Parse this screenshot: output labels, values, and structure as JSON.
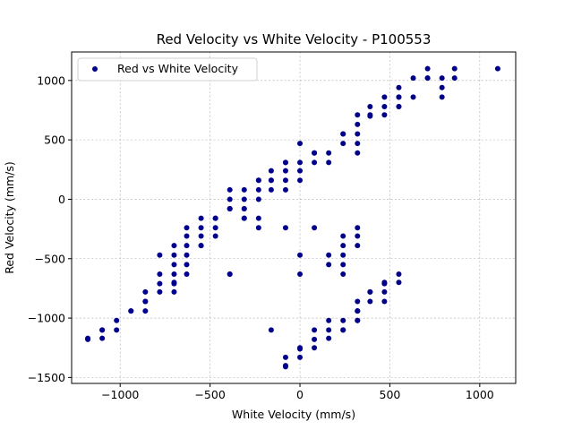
{
  "chart_data": {
    "type": "scatter",
    "title": "Red Velocity vs White Velocity - P100553",
    "xlabel": "White Velocity (mm/s)",
    "ylabel": "Red Velocity (mm/s)",
    "xlim": [
      -1270,
      1200
    ],
    "ylim": [
      -1550,
      1240
    ],
    "xticks": [
      -1000,
      -500,
      0,
      500,
      1000
    ],
    "yticks": [
      -1500,
      -1000,
      -500,
      0,
      500,
      1000
    ],
    "xtick_labels": [
      "−1000",
      "−500",
      "0",
      "500",
      "1000"
    ],
    "ytick_labels": [
      "−1500",
      "−1000",
      "−500",
      "0",
      "500",
      "1000"
    ],
    "grid": true,
    "legend": {
      "position": "top-left",
      "entries": [
        "Red vs White Velocity"
      ]
    },
    "series": [
      {
        "name": "Red vs White Velocity",
        "color": "#00008b",
        "marker": "circle",
        "x": [
          -1180,
          -1180,
          -1100,
          -1100,
          -1100,
          -1020,
          -1020,
          -940,
          -940,
          -860,
          -860,
          -860,
          -860,
          -780,
          -780,
          -780,
          -780,
          -700,
          -700,
          -700,
          -700,
          -700,
          -700,
          -700,
          -630,
          -630,
          -630,
          -630,
          -630,
          -630,
          -550,
          -550,
          -550,
          -550,
          -550,
          -470,
          -470,
          -470,
          -470,
          -390,
          -390,
          -390,
          -390,
          -390,
          -390,
          -310,
          -310,
          -310,
          -310,
          -310,
          -310,
          -230,
          -230,
          -230,
          -230,
          -230,
          -230,
          -160,
          -160,
          -160,
          -160,
          -80,
          -80,
          -80,
          -80,
          -80,
          -80,
          -80,
          -80,
          -80,
          0,
          0,
          0,
          0,
          0,
          0,
          0,
          0,
          0,
          80,
          80,
          80,
          80,
          80,
          80,
          80,
          160,
          160,
          160,
          160,
          160,
          160,
          160,
          240,
          240,
          240,
          240,
          240,
          240,
          240,
          240,
          240,
          240,
          240,
          320,
          320,
          320,
          320,
          320,
          320,
          320,
          320,
          320,
          320,
          320,
          320,
          320,
          320,
          390,
          390,
          390,
          390,
          390,
          390,
          470,
          470,
          470,
          470,
          470,
          470,
          470,
          550,
          550,
          550,
          550,
          550,
          550,
          550,
          630,
          630,
          710,
          710,
          710,
          790,
          790,
          790,
          860,
          860,
          1100,
          -390,
          -160
        ],
        "y": [
          -1180,
          -1170,
          -1100,
          -1100,
          -1170,
          -1020,
          -1100,
          -940,
          -940,
          -860,
          -860,
          -780,
          -940,
          -470,
          -630,
          -710,
          -780,
          -390,
          -470,
          -550,
          -630,
          -700,
          -710,
          -780,
          -240,
          -310,
          -390,
          -470,
          -550,
          -630,
          -160,
          -240,
          -310,
          -390,
          -390,
          -160,
          -160,
          -240,
          -310,
          80,
          0,
          -80,
          -80,
          -80,
          -630,
          80,
          0,
          -80,
          -80,
          -160,
          -160,
          160,
          160,
          80,
          0,
          -160,
          -240,
          240,
          160,
          160,
          80,
          310,
          310,
          240,
          160,
          80,
          -240,
          -1330,
          -1410,
          -1400,
          470,
          310,
          240,
          160,
          -470,
          -630,
          -1250,
          -1260,
          -1330,
          390,
          390,
          310,
          -240,
          -1100,
          -1180,
          -1250,
          390,
          310,
          -470,
          -550,
          -1020,
          -1100,
          -1170,
          550,
          550,
          470,
          -310,
          -390,
          -470,
          -550,
          -630,
          -1020,
          -1100,
          -1100,
          710,
          630,
          550,
          470,
          390,
          -240,
          -310,
          -390,
          -860,
          -940,
          -940,
          -940,
          -1020,
          -1020,
          780,
          710,
          700,
          -780,
          -780,
          -860,
          860,
          780,
          710,
          -700,
          -710,
          -780,
          -860,
          940,
          860,
          780,
          780,
          860,
          -630,
          -700,
          1020,
          860,
          1100,
          1020,
          1020,
          1020,
          940,
          860,
          1100,
          1020,
          1100,
          -630,
          -1100
        ]
      }
    ]
  }
}
